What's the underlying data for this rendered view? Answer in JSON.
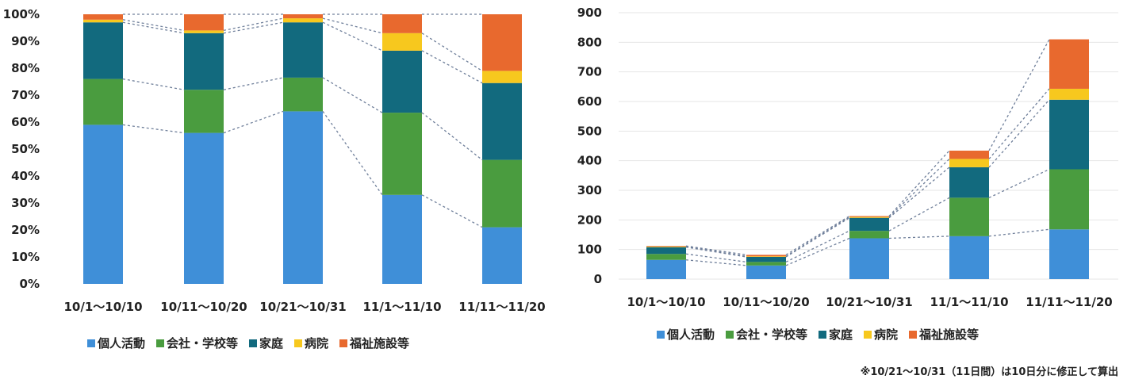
{
  "chart_data": [
    {
      "type": "bar",
      "stacked": true,
      "categories": [
        "10/1～10/10",
        "10/11～10/20",
        "10/21～10/31",
        "11/1～11/10",
        "11/11～11/20"
      ],
      "ylim": [
        0,
        100
      ],
      "yticks": [
        "0%",
        "10%",
        "20%",
        "30%",
        "40%",
        "50%",
        "60%",
        "70%",
        "80%",
        "90%",
        "100%"
      ],
      "legend_position": "bottom",
      "series": [
        {
          "name": "個人活動",
          "color": "#3f8fd8",
          "values": [
            59,
            56,
            64,
            33,
            21
          ]
        },
        {
          "name": "会社・学校等",
          "color": "#4a9c3f",
          "values": [
            17,
            16,
            12.5,
            30.5,
            25
          ]
        },
        {
          "name": "家庭",
          "color": "#126a7e",
          "values": [
            21,
            21,
            20.5,
            23,
            28.5
          ]
        },
        {
          "name": "病院",
          "color": "#f7c81e",
          "values": [
            1,
            1,
            1.5,
            6.5,
            4.5
          ]
        },
        {
          "name": "福祉施設等",
          "color": "#e8692e",
          "values": [
            2,
            6,
            1.5,
            7,
            21
          ]
        }
      ]
    },
    {
      "type": "bar",
      "stacked": true,
      "categories": [
        "10/1～10/10",
        "10/11～10/20",
        "10/21～10/31",
        "11/1～11/10",
        "11/11～11/20"
      ],
      "ylim": [
        0,
        900
      ],
      "yticks": [
        "0",
        "100",
        "200",
        "300",
        "400",
        "500",
        "600",
        "700",
        "800",
        "900"
      ],
      "legend_position": "bottom",
      "series": [
        {
          "name": "個人活動",
          "color": "#3f8fd8",
          "values": [
            65,
            46,
            138,
            145,
            168
          ]
        },
        {
          "name": "会社・学校等",
          "color": "#4a9c3f",
          "values": [
            20,
            12,
            25,
            130,
            203
          ]
        },
        {
          "name": "家庭",
          "color": "#126a7e",
          "values": [
            23,
            17,
            44,
            103,
            235
          ]
        },
        {
          "name": "病院",
          "color": "#f7c81e",
          "values": [
            2,
            2,
            3,
            28,
            37
          ]
        },
        {
          "name": "福祉施設等",
          "color": "#e8692e",
          "values": [
            2,
            5,
            3,
            28,
            167
          ]
        }
      ]
    }
  ],
  "footnote": "※10/21～10/31（11日間）は10日分に修正して算出"
}
